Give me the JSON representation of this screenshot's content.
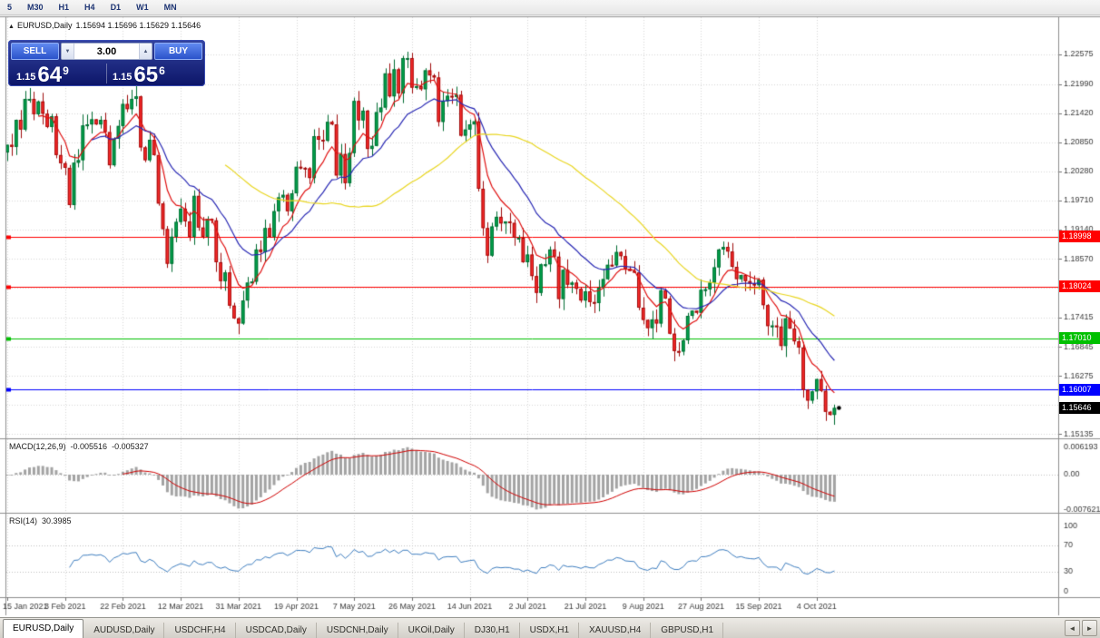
{
  "toolbar": {
    "timeframes": [
      "5",
      "M30",
      "H1",
      "H4",
      "D1",
      "W1",
      "MN"
    ]
  },
  "window": {
    "collapse_icon": "▲",
    "title_symbol": "EURUSD,Daily",
    "title_ohlc": "1.15694 1.15696 1.15629 1.15646"
  },
  "one_click": {
    "sell_label": "SELL",
    "buy_label": "BUY",
    "lot_size": "3.00",
    "spin_down_icon": "▼",
    "spin_up_icon": "▲",
    "bid": {
      "small": "1.15",
      "big": "64",
      "sup": "9"
    },
    "ask": {
      "small": "1.15",
      "big": "65",
      "sup": "6"
    }
  },
  "chart_data": {
    "type": "candlestick",
    "symbol": "EURUSD",
    "period": "Daily",
    "x_tick_labels": [
      "15 Jan 2021",
      "3 Feb 2021",
      "22 Feb 2021",
      "12 Mar 2021",
      "31 Mar 2021",
      "19 Apr 2021",
      "7 May 2021",
      "26 May 2021",
      "14 Jun 2021",
      "2 Jul 2021",
      "21 Jul 2021",
      "9 Aug 2021",
      "27 Aug 2021",
      "15 Sep 2021",
      "4 Oct 2021"
    ],
    "bars_per_label": 13,
    "wick_amp": 0.0022,
    "closes": [
      1.208,
      1.2076,
      1.2129,
      1.211,
      1.217,
      1.217,
      1.214,
      1.2165,
      1.2141,
      1.2115,
      1.2136,
      1.206,
      1.2044,
      1.2035,
      1.1962,
      1.2045,
      1.205,
      1.2118,
      1.212,
      1.213,
      1.212,
      1.2129,
      1.2105,
      1.204,
      1.2092,
      1.2117,
      1.216,
      1.215,
      1.217,
      1.2175,
      1.2075,
      1.205,
      1.209,
      1.206,
      1.1965,
      1.1915,
      1.1847,
      1.19,
      1.1929,
      1.1955,
      1.193,
      1.19,
      1.198,
      1.1918,
      1.19,
      1.1935,
      1.1932,
      1.185,
      1.1813,
      1.183,
      1.1765,
      1.174,
      1.173,
      1.1775,
      1.181,
      1.1812,
      1.1875,
      1.187,
      1.1917,
      1.19,
      1.195,
      1.1977,
      1.1982,
      1.195,
      1.1985,
      1.2037,
      1.2035,
      1.2034,
      1.2015,
      1.2097,
      1.209,
      1.2088,
      1.2125,
      1.212,
      1.202,
      1.2062,
      1.2005,
      1.2064,
      1.2166,
      1.2128,
      1.2147,
      1.2072,
      1.2078,
      1.2144,
      1.2153,
      1.222,
      1.2175,
      1.2228,
      1.2181,
      1.225,
      1.225,
      1.2192,
      1.2195,
      1.2189,
      1.2226,
      1.2216,
      1.2212,
      1.2125,
      1.2166,
      1.2176,
      1.2174,
      1.2178,
      1.2098,
      1.211,
      1.212,
      1.2126,
      1.1994,
      1.1917,
      1.1863,
      1.192,
      1.1939,
      1.1926,
      1.193,
      1.1927,
      1.1898,
      1.1898,
      1.185,
      1.1865,
      1.1823,
      1.179,
      1.1846,
      1.1846,
      1.1875,
      1.1861,
      1.1778,
      1.1835,
      1.1806,
      1.181,
      1.1798,
      1.1775,
      1.1793,
      1.1772,
      1.177,
      1.18,
      1.1817,
      1.1845,
      1.1844,
      1.187,
      1.1862,
      1.1837,
      1.1833,
      1.183,
      1.1761,
      1.1737,
      1.1721,
      1.1738,
      1.173,
      1.1795,
      1.1779,
      1.171,
      1.1676,
      1.1675,
      1.1697,
      1.1745,
      1.1755,
      1.1751,
      1.1796,
      1.1797,
      1.181,
      1.184,
      1.1875,
      1.188,
      1.1871,
      1.1841,
      1.1817,
      1.1825,
      1.1813,
      1.1808,
      1.1805,
      1.1816,
      1.1766,
      1.1725,
      1.1726,
      1.1724,
      1.1686,
      1.174,
      1.172,
      1.1695,
      1.1683,
      1.16,
      1.1579,
      1.1597,
      1.1621,
      1.1598,
      1.1557,
      1.1551,
      1.15646
    ],
    "price_axis": {
      "min": 1.1505,
      "max": 1.233,
      "tick_labels": [
        "1.22575",
        "1.21990",
        "1.21420",
        "1.20850",
        "1.20280",
        "1.19710",
        "1.19140",
        "1.18570",
        "1.17415",
        "1.16845",
        "1.16275",
        "1.15135"
      ],
      "grid_extra": [
        1.18,
        1.15705
      ]
    },
    "levels": [
      {
        "value": 1.18998,
        "label": "1.18998",
        "color": "#ff0000",
        "line": true
      },
      {
        "value": 1.18024,
        "label": "1.18024",
        "color": "#ff0000",
        "line": true
      },
      {
        "value": 1.1701,
        "label": "1.17010",
        "color": "#00c000",
        "line": true
      },
      {
        "value": 1.16007,
        "label": "1.16007",
        "color": "#0000ff",
        "line": true
      },
      {
        "value": 1.15646,
        "label": "1.15646",
        "color": "#000000",
        "line": false
      }
    ],
    "moving_averages": [
      {
        "type": "ema",
        "period": 8,
        "color": "#e01010"
      },
      {
        "type": "ema",
        "period": 20,
        "color": "#2828b4"
      },
      {
        "type": "sma",
        "period": 50,
        "color": "#e9d620"
      }
    ],
    "indicators": {
      "macd": {
        "label": "MACD(12,26,9)",
        "value_main": "-0.005516",
        "value_signal": "-0.005327",
        "fast": 12,
        "slow": 26,
        "signal": 9,
        "axis_labels": [
          "0.006193",
          "0.00",
          "-0.007621"
        ],
        "hist_color": "#a3a3a3",
        "signal_color": "#d00000"
      },
      "rsi": {
        "label": "RSI(14)",
        "value": "30.3985",
        "period": 14,
        "axis_labels": [
          "100",
          "70",
          "30",
          "0"
        ],
        "levels": [
          70,
          30
        ],
        "color": "#3e7ec0"
      }
    },
    "colors": {
      "up": "#00a74e",
      "up_border": "#006b31",
      "down": "#fe2b2b",
      "down_border": "#9e0b0b",
      "grid": "#d7d7d7",
      "axis_text": "#3a3a3a",
      "frame": "#8e8e8e",
      "last_dot": "#000000"
    }
  },
  "tabs": {
    "items": [
      {
        "label": "EURUSD,Daily",
        "active": true
      },
      {
        "label": "AUDUSD,Daily",
        "active": false
      },
      {
        "label": "USDCHF,H4",
        "active": false
      },
      {
        "label": "USDCAD,Daily",
        "active": false
      },
      {
        "label": "USDCNH,Daily",
        "active": false
      },
      {
        "label": "UKOil,Daily",
        "active": false
      },
      {
        "label": "DJ30,H1",
        "active": false
      },
      {
        "label": "USDX,H1",
        "active": false
      },
      {
        "label": "XAUUSD,H4",
        "active": false
      },
      {
        "label": "GBPUSD,H1",
        "active": false
      }
    ],
    "scroll_left_icon": "◄",
    "scroll_right_icon": "►"
  }
}
